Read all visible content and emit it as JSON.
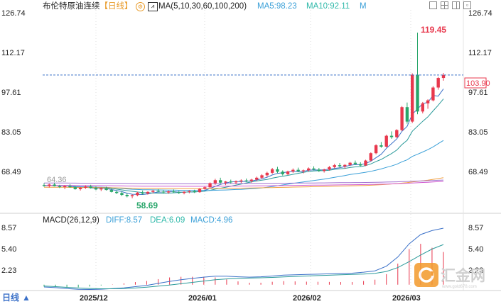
{
  "header": {
    "symbol": "布伦特原油连续",
    "period_tag": "【日线】",
    "ma_label": "MA(5,10,30,60,100,200)",
    "ma5_label": "MA5:98.23",
    "ma10_label": "MA10:92.11",
    "m_label": "M"
  },
  "macd_header": {
    "label": "MACD(26,12,9)",
    "diff_label": "DIFF:8.57",
    "dea_label": "DEA:6.09",
    "macd_label": "MACD:4.96"
  },
  "bottom_bar": {
    "period_button": "日线",
    "arrow": "▲"
  },
  "watermark": {
    "text": "汇金网",
    "url": "www.gold678.com"
  },
  "colors": {
    "up": "#e8384d",
    "down": "#28a66a",
    "ma5": "#3a70c8",
    "ma10": "#2a9a9a",
    "ma30": "#3ba0d8",
    "ma60": "#f0a040",
    "ma100": "#d05ad0",
    "ma200": "#a070d0",
    "diff": "#3a70c8",
    "dea": "#2a9a9a",
    "last_price": "#3a70c8",
    "max_label": "#e8384d",
    "min_label": "#28a66a"
  },
  "chart_data": {
    "type": "candlestick",
    "title": "布伦特原油连续【日线】",
    "price_axis": {
      "ticks": [
        126.74,
        112.17,
        97.61,
        83.05,
        68.49
      ],
      "ylim": [
        57.5,
        126.74
      ]
    },
    "x_tick_labels": [
      "2025/12",
      "2026/01",
      "2026/02",
      "2026/03"
    ],
    "last_price": 103.9,
    "max_label": "119.45",
    "min_label": "58.69",
    "start_label": "64.36",
    "ohlc": [
      [
        63.5,
        64.2,
        62.9,
        63.2
      ],
      [
        63.2,
        64.0,
        62.6,
        63.7
      ],
      [
        63.7,
        64.4,
        63.0,
        63.1
      ],
      [
        63.1,
        63.6,
        62.4,
        62.8
      ],
      [
        62.8,
        63.5,
        62.0,
        63.2
      ],
      [
        63.2,
        63.8,
        62.5,
        62.7
      ],
      [
        62.7,
        63.2,
        61.8,
        62.0
      ],
      [
        62.0,
        62.8,
        61.5,
        62.5
      ],
      [
        62.5,
        63.4,
        62.1,
        63.0
      ],
      [
        63.0,
        63.6,
        62.2,
        62.4
      ],
      [
        62.4,
        63.0,
        61.6,
        61.9
      ],
      [
        61.9,
        62.6,
        61.3,
        62.3
      ],
      [
        62.3,
        62.9,
        61.5,
        61.7
      ],
      [
        61.7,
        62.2,
        60.8,
        61.0
      ],
      [
        61.0,
        61.6,
        60.2,
        60.6
      ],
      [
        60.6,
        61.2,
        59.5,
        59.9
      ],
      [
        59.9,
        60.5,
        59.0,
        59.4
      ],
      [
        59.4,
        60.1,
        58.69,
        59.8
      ],
      [
        59.8,
        61.0,
        59.4,
        60.7
      ],
      [
        60.7,
        61.5,
        60.0,
        60.4
      ],
      [
        60.4,
        61.2,
        60.0,
        61.0
      ],
      [
        61.0,
        61.8,
        60.5,
        61.4
      ],
      [
        61.4,
        62.0,
        60.8,
        61.1
      ],
      [
        61.1,
        61.6,
        60.4,
        60.8
      ],
      [
        60.8,
        61.5,
        60.3,
        61.2
      ],
      [
        61.2,
        61.9,
        60.7,
        60.9
      ],
      [
        60.9,
        61.4,
        60.2,
        60.6
      ],
      [
        60.6,
        61.3,
        60.1,
        61.0
      ],
      [
        61.0,
        61.6,
        60.5,
        61.3
      ],
      [
        61.3,
        61.8,
        60.6,
        60.9
      ],
      [
        60.9,
        62.4,
        60.7,
        62.1
      ],
      [
        62.1,
        63.0,
        61.8,
        62.7
      ],
      [
        62.7,
        64.5,
        62.5,
        64.2
      ],
      [
        64.2,
        65.8,
        63.6,
        65.3
      ],
      [
        65.3,
        66.2,
        64.0,
        64.4
      ],
      [
        64.4,
        65.0,
        63.5,
        64.8
      ],
      [
        64.8,
        65.5,
        64.1,
        64.5
      ],
      [
        64.5,
        65.2,
        63.8,
        64.9
      ],
      [
        64.9,
        65.6,
        64.3,
        65.2
      ],
      [
        65.2,
        65.9,
        64.6,
        65.0
      ],
      [
        65.0,
        65.8,
        64.4,
        65.5
      ],
      [
        65.5,
        66.6,
        65.0,
        66.2
      ],
      [
        66.2,
        67.5,
        65.7,
        67.1
      ],
      [
        67.1,
        68.4,
        66.5,
        68.0
      ],
      [
        68.0,
        69.8,
        67.6,
        69.3
      ],
      [
        69.3,
        70.2,
        67.9,
        68.4
      ],
      [
        68.4,
        68.9,
        67.0,
        67.5
      ],
      [
        67.5,
        68.8,
        67.2,
        68.5
      ],
      [
        68.5,
        69.6,
        68.0,
        69.1
      ],
      [
        69.1,
        69.9,
        68.2,
        68.6
      ],
      [
        68.6,
        69.2,
        67.8,
        68.9
      ],
      [
        68.9,
        70.0,
        68.5,
        69.6
      ],
      [
        69.6,
        70.4,
        68.9,
        69.2
      ],
      [
        69.2,
        69.8,
        68.3,
        68.7
      ],
      [
        68.7,
        69.5,
        68.1,
        69.2
      ],
      [
        69.2,
        70.5,
        68.8,
        70.1
      ],
      [
        70.1,
        71.3,
        69.6,
        70.8
      ],
      [
        70.8,
        71.6,
        70.0,
        70.4
      ],
      [
        70.4,
        71.2,
        69.5,
        70.9
      ],
      [
        70.9,
        72.0,
        70.5,
        71.7
      ],
      [
        71.7,
        72.5,
        70.9,
        71.2
      ],
      [
        71.2,
        71.9,
        70.4,
        70.7
      ],
      [
        70.7,
        72.8,
        70.5,
        72.5
      ],
      [
        72.5,
        75.5,
        72.2,
        75.2
      ],
      [
        75.2,
        78.5,
        74.8,
        78.1
      ],
      [
        78.1,
        79.3,
        77.2,
        77.6
      ],
      [
        77.6,
        82.0,
        77.3,
        81.6
      ],
      [
        81.6,
        83.2,
        80.5,
        81.1
      ],
      [
        81.1,
        84.0,
        80.8,
        83.7
      ],
      [
        83.7,
        92.5,
        83.3,
        92.1
      ],
      [
        92.1,
        93.8,
        86.0,
        86.8
      ],
      [
        86.8,
        104.5,
        86.3,
        104.0
      ],
      [
        104.0,
        119.45,
        89.5,
        90.5
      ],
      [
        90.5,
        94.0,
        89.8,
        93.5
      ],
      [
        93.5,
        95.0,
        91.5,
        94.6
      ],
      [
        94.6,
        99.8,
        94.2,
        99.3
      ],
      [
        99.3,
        103.2,
        98.5,
        102.8
      ],
      [
        102.8,
        104.6,
        101.8,
        103.9
      ]
    ],
    "ma_series": [
      {
        "name": "MA5",
        "values": [
          62.5,
          63.2,
          64.1,
          65.8,
          67.6,
          69.0,
          70.1,
          71.5,
          73.8,
          76.9,
          82.5,
          90.8,
          96.7,
          97.1,
          98.23
        ]
      },
      {
        "name": "MA10",
        "values": [
          62.3,
          62.4,
          62.7,
          63.6,
          64.8,
          66.0,
          67.1,
          68.3,
          69.6,
          71.5,
          74.6,
          79.8,
          85.5,
          89.4,
          92.11
        ]
      }
    ],
    "macd": {
      "axis_ticks": [
        8.57,
        5.4,
        2.23
      ],
      "ylim": [
        -1.6,
        10.0
      ],
      "diff_last": 8.57,
      "dea_last": 6.09,
      "macd_last": 4.96,
      "diff": [
        -0.35,
        -0.45,
        -0.6,
        -0.7,
        -0.72,
        -0.68,
        -0.6,
        -0.48,
        -0.3,
        -0.1,
        0.2,
        0.5,
        0.75,
        0.95,
        1.15,
        1.3,
        1.28,
        1.2,
        1.15,
        1.2,
        1.32,
        1.45,
        1.5,
        1.55,
        1.6,
        1.65,
        1.7,
        1.75,
        1.9,
        2.1,
        2.8,
        4.2,
        6.2,
        7.6,
        8.2,
        8.57
      ],
      "dea": [
        -0.2,
        -0.3,
        -0.4,
        -0.5,
        -0.58,
        -0.62,
        -0.62,
        -0.58,
        -0.5,
        -0.38,
        -0.22,
        -0.05,
        0.15,
        0.35,
        0.55,
        0.75,
        0.88,
        0.95,
        1.0,
        1.05,
        1.1,
        1.18,
        1.25,
        1.32,
        1.38,
        1.44,
        1.5,
        1.55,
        1.62,
        1.72,
        2.0,
        2.6,
        3.5,
        4.5,
        5.4,
        6.09
      ]
    }
  }
}
